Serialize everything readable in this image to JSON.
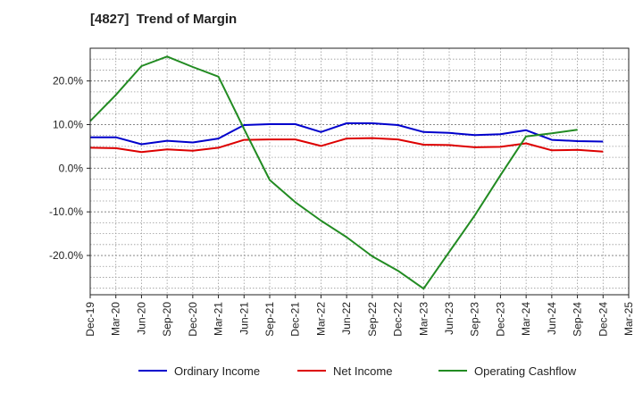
{
  "chart_data": {
    "type": "line",
    "title": "[4827]  Trend of Margin",
    "xlabel": "",
    "ylabel": "",
    "categories": [
      "Dec-19",
      "Mar-20",
      "Jun-20",
      "Sep-20",
      "Dec-20",
      "Mar-21",
      "Jun-21",
      "Sep-21",
      "Dec-21",
      "Mar-22",
      "Jun-22",
      "Sep-22",
      "Dec-22",
      "Mar-23",
      "Jun-23",
      "Sep-23",
      "Dec-23",
      "Mar-24",
      "Jun-24",
      "Sep-24",
      "Dec-24",
      "Mar-25"
    ],
    "y_ticks": [
      {
        "value": 20,
        "label": "20.0%"
      },
      {
        "value": 10,
        "label": "10.0%"
      },
      {
        "value": 0,
        "label": "0.0%"
      },
      {
        "value": -10,
        "label": "-10.0%"
      },
      {
        "value": -20,
        "label": "-20.0%"
      }
    ],
    "ylim": [
      -29,
      27.5
    ],
    "grid": true,
    "legend_position": "bottom",
    "series": [
      {
        "name": "Ordinary Income",
        "color": "#0000cc",
        "values": [
          7.1,
          7.1,
          5.5,
          6.3,
          5.9,
          6.8,
          9.9,
          10.1,
          10.1,
          8.3,
          10.3,
          10.3,
          9.9,
          8.3,
          8.1,
          7.6,
          7.8,
          8.7,
          6.5,
          6.2,
          6.1,
          null
        ]
      },
      {
        "name": "Net Income",
        "color": "#dd0000",
        "values": [
          4.7,
          4.6,
          3.7,
          4.3,
          4.0,
          4.7,
          6.5,
          6.6,
          6.6,
          5.1,
          6.8,
          6.9,
          6.6,
          5.4,
          5.3,
          4.8,
          4.9,
          5.7,
          4.1,
          4.2,
          3.8,
          null
        ]
      },
      {
        "name": "Operating Cashflow",
        "color": "#228b22",
        "values": [
          10.8,
          16.8,
          23.4,
          25.6,
          23.2,
          21.0,
          9.0,
          -2.7,
          -7.8,
          -12.0,
          -15.8,
          -20.2,
          -23.5,
          -27.6,
          -19.2,
          -10.8,
          -1.6,
          7.3,
          8.0,
          8.8,
          null,
          null
        ]
      }
    ]
  }
}
